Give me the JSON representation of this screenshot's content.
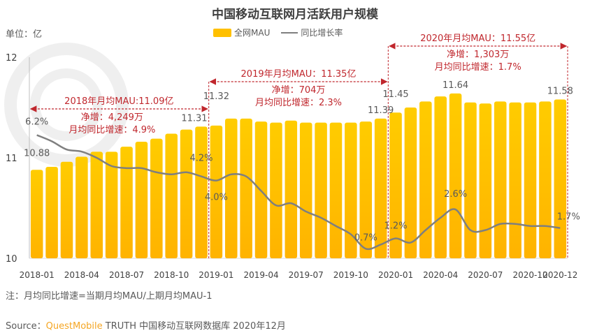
{
  "title": "中国移动互联网月活跃用户规模",
  "unit_label": "单位：亿",
  "legend": {
    "bar": "全网MAU",
    "line": "同比增长率"
  },
  "note": "注：月均同比增速=当期月均MAU/上期月均MAU-1",
  "source": {
    "prefix": "Source：",
    "brand": "QuestMobile",
    "rest": " TRUTH 中国移动互联网数据库 2020年12月"
  },
  "colors": {
    "bar": "#FFC000",
    "bar_dark": "#FFB300",
    "line": "#7F7F7F",
    "annotation": "#C0272D",
    "brand": "#F5A623"
  },
  "chart_data": {
    "type": "bar",
    "title": "中国移动互联网月活跃用户规模",
    "xlabel": "",
    "ylabel": "单位：亿",
    "ylim": [
      10,
      12
    ],
    "y_ticks": [
      "10",
      "11",
      "12"
    ],
    "y2lim": [
      -0.25,
      10
    ],
    "grid": false,
    "legend_position": "top-center",
    "categories": [
      "2018-01",
      "2018-02",
      "2018-03",
      "2018-04",
      "2018-05",
      "2018-06",
      "2018-07",
      "2018-08",
      "2018-09",
      "2018-10",
      "2018-11",
      "2018-12",
      "2019-01",
      "2019-02",
      "2019-03",
      "2019-04",
      "2019-05",
      "2019-06",
      "2019-07",
      "2019-08",
      "2019-09",
      "2019-10",
      "2019-11",
      "2019-12",
      "2020-01",
      "2020-02",
      "2020-03",
      "2020-04",
      "2020-05",
      "2020-06",
      "2020-07",
      "2020-08",
      "2020-09",
      "2020-10",
      "2020-11",
      "2020-12"
    ],
    "x_tick_labels": [
      {
        "index": 0,
        "label": "2018-01"
      },
      {
        "index": 3,
        "label": "2018-04"
      },
      {
        "index": 6,
        "label": "2018-07"
      },
      {
        "index": 9,
        "label": "2018-10"
      },
      {
        "index": 12,
        "label": "2019-01"
      },
      {
        "index": 15,
        "label": "2019-04"
      },
      {
        "index": 18,
        "label": "2019-07"
      },
      {
        "index": 21,
        "label": "2019-10"
      },
      {
        "index": 24,
        "label": "2020-01"
      },
      {
        "index": 27,
        "label": "2020-04"
      },
      {
        "index": 30,
        "label": "2020-07"
      },
      {
        "index": 33,
        "label": "2020-10"
      },
      {
        "index": 35,
        "label": "2020-12"
      }
    ],
    "series": [
      {
        "name": "全网MAU",
        "type": "bar",
        "unit": "亿",
        "values": [
          10.88,
          10.91,
          10.96,
          11.01,
          11.06,
          11.06,
          11.11,
          11.16,
          11.19,
          11.24,
          11.28,
          11.31,
          11.32,
          11.39,
          11.39,
          11.36,
          11.35,
          11.37,
          11.35,
          11.35,
          11.35,
          11.35,
          11.36,
          11.39,
          11.45,
          11.5,
          11.56,
          11.61,
          11.64,
          11.55,
          11.54,
          11.56,
          11.55,
          11.55,
          11.56,
          11.58
        ]
      },
      {
        "name": "同比增长率",
        "type": "line",
        "unit": "%",
        "values": [
          6.2,
          5.9,
          5.5,
          5.4,
          5.1,
          4.7,
          4.6,
          4.6,
          4.4,
          4.3,
          4.4,
          4.2,
          4.0,
          4.3,
          4.2,
          3.5,
          2.8,
          2.9,
          2.5,
          2.2,
          1.8,
          1.4,
          0.7,
          0.9,
          1.2,
          1.0,
          1.6,
          2.2,
          2.6,
          1.6,
          1.6,
          1.9,
          1.9,
          1.8,
          1.8,
          1.7
        ]
      }
    ],
    "bar_labels": [
      {
        "index": 0,
        "text": "10.88"
      },
      {
        "index": 11,
        "text": "11.31"
      },
      {
        "index": 12,
        "text": "11.32"
      },
      {
        "index": 23,
        "text": "11.39"
      },
      {
        "index": 24,
        "text": "11.45"
      },
      {
        "index": 28,
        "text": "11.64"
      },
      {
        "index": 35,
        "text": "11.58"
      }
    ],
    "line_labels": [
      {
        "index": 0,
        "text": "6.2%"
      },
      {
        "index": 11,
        "text": "4.2%"
      },
      {
        "index": 12,
        "text": "4.0%"
      },
      {
        "index": 22,
        "text": "0.7%"
      },
      {
        "index": 24,
        "text": "1.2%"
      },
      {
        "index": 28,
        "text": "2.6%"
      },
      {
        "index": 35,
        "text": "1.7%"
      }
    ],
    "annotations": [
      {
        "from": 0,
        "to": 11,
        "heading": "2018年月均MAU:11.09亿",
        "lines": [
          "净增：4,249万",
          "月均同比增速：4.9%"
        ]
      },
      {
        "from": 12,
        "to": 23,
        "heading": "2019年月均MAU：11.35亿",
        "lines": [
          "净增：704万",
          "月均同比增速：2.3%"
        ]
      },
      {
        "from": 24,
        "to": 35,
        "heading": "2020年月均MAU：11.55亿",
        "lines": [
          "净增：1,303万",
          "月均同比增速：1.7%"
        ]
      }
    ]
  }
}
